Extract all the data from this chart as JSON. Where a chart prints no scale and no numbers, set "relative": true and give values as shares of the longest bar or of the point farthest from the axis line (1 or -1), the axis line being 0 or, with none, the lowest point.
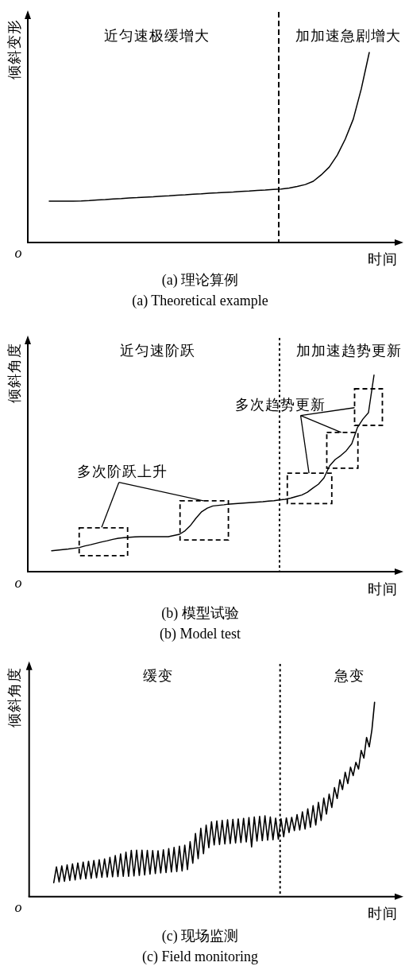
{
  "chart_data": [
    {
      "type": "line",
      "title": "(a) 理论算例",
      "subtitle": "(a) Theoretical example",
      "xlabel": "时间",
      "ylabel": "倾斜变形",
      "annotations": [
        "近匀速极缓增大",
        "加加速急剧增大",
        "o"
      ],
      "relative": true,
      "color": "#000000",
      "categories": [
        null,
        null,
        null,
        null,
        null,
        null,
        null,
        null,
        null,
        null,
        null,
        null,
        null,
        null,
        null,
        null,
        null,
        null,
        null,
        null,
        null,
        null,
        null,
        null,
        null,
        null,
        null,
        null,
        null,
        null,
        null,
        null,
        null,
        null,
        null,
        null,
        null,
        null,
        null,
        null,
        null
      ],
      "values": [
        0.218,
        0.218,
        0.218,
        0.218,
        0.219,
        0.221,
        0.224,
        0.226,
        0.229,
        0.231,
        0.234,
        0.236,
        0.239,
        0.241,
        0.244,
        0.246,
        0.249,
        0.251,
        0.254,
        0.256,
        0.259,
        0.261,
        0.264,
        0.266,
        0.269,
        0.271,
        0.274,
        0.276,
        0.279,
        0.281,
        0.287,
        0.295,
        0.305,
        0.322,
        0.356,
        0.397,
        0.46,
        0.544,
        0.649,
        0.808,
        1.0
      ]
    },
    {
      "type": "line",
      "title": "(b) 模型试验",
      "subtitle": "(b) Model test",
      "xlabel": "时间",
      "ylabel": "倾斜角度",
      "annotations": [
        "近匀速阶跃",
        "加加速趋势更新",
        "o",
        "多次阶跃上升",
        "多次趋势更新"
      ],
      "relative": true,
      "color": "#000000",
      "categories": [
        null,
        null,
        null,
        null,
        null,
        null,
        null,
        null,
        null,
        null,
        null,
        null,
        null,
        null,
        null,
        null,
        null,
        null,
        null,
        null,
        null,
        null,
        null,
        null,
        null,
        null,
        null,
        null,
        null,
        null,
        null,
        null,
        null,
        null,
        null,
        null,
        null,
        null,
        null,
        null,
        null,
        null,
        null,
        null,
        null,
        null,
        null,
        null,
        null,
        null,
        null,
        null,
        null,
        null,
        null,
        null,
        null,
        null,
        null
      ],
      "values": [
        0.106,
        0.109,
        0.112,
        0.115,
        0.119,
        0.123,
        0.131,
        0.137,
        0.144,
        0.151,
        0.157,
        0.164,
        0.17,
        0.173,
        0.175,
        0.177,
        0.178,
        0.178,
        0.178,
        0.178,
        0.178,
        0.178,
        0.184,
        0.19,
        0.208,
        0.236,
        0.273,
        0.305,
        0.323,
        0.334,
        0.337,
        0.34,
        0.344,
        0.346,
        0.348,
        0.35,
        0.352,
        0.354,
        0.356,
        0.359,
        0.361,
        0.365,
        0.368,
        0.374,
        0.382,
        0.39,
        0.404,
        0.425,
        0.445,
        0.477,
        0.538,
        0.57,
        0.59,
        0.615,
        0.651,
        0.732,
        0.776,
        0.809,
        1.0
      ]
    },
    {
      "type": "line",
      "title": "(c) 现场监测",
      "subtitle": "(c) Field monitoring",
      "xlabel": "时间",
      "ylabel": "倾斜角度",
      "annotations": [
        "缓变",
        "急变",
        "o"
      ],
      "relative": true,
      "color": "#000000",
      "categories": [
        null,
        null,
        null,
        null,
        null,
        null,
        null,
        null,
        null,
        null,
        null,
        null,
        null,
        null,
        null,
        null,
        null,
        null,
        null,
        null,
        null,
        null,
        null,
        null,
        null,
        null,
        null,
        null,
        null,
        null,
        null,
        null,
        null,
        null,
        null,
        null,
        null,
        null,
        null,
        null,
        null,
        null,
        null,
        null,
        null,
        null,
        null,
        null,
        null,
        null,
        null,
        null,
        null,
        null,
        null,
        null,
        null,
        null,
        null,
        null,
        null,
        null,
        null,
        null,
        null,
        null,
        null,
        null,
        null,
        null,
        null,
        null,
        null,
        null,
        null,
        null,
        null,
        null,
        null,
        null,
        null,
        null,
        null,
        null,
        null,
        null,
        null,
        null,
        null,
        null,
        null,
        null,
        null,
        null,
        null,
        null,
        null,
        null,
        null,
        null,
        null,
        null,
        null,
        null,
        null,
        null,
        null,
        null,
        null,
        null,
        null,
        null,
        null,
        null,
        null,
        null,
        null,
        null,
        null,
        null,
        null
      ],
      "values": [
        0.072,
        0.153,
        0.076,
        0.158,
        0.079,
        0.163,
        0.083,
        0.168,
        0.086,
        0.173,
        0.09,
        0.178,
        0.092,
        0.182,
        0.094,
        0.186,
        0.097,
        0.19,
        0.099,
        0.194,
        0.101,
        0.202,
        0.102,
        0.211,
        0.103,
        0.22,
        0.104,
        0.229,
        0.104,
        0.238,
        0.106,
        0.239,
        0.109,
        0.239,
        0.112,
        0.238,
        0.116,
        0.237,
        0.119,
        0.236,
        0.122,
        0.241,
        0.124,
        0.247,
        0.127,
        0.253,
        0.129,
        0.259,
        0.132,
        0.265,
        0.139,
        0.283,
        0.172,
        0.325,
        0.195,
        0.351,
        0.221,
        0.368,
        0.252,
        0.385,
        0.266,
        0.389,
        0.268,
        0.392,
        0.271,
        0.395,
        0.273,
        0.397,
        0.276,
        0.4,
        0.278,
        0.403,
        0.281,
        0.407,
        0.256,
        0.41,
        0.286,
        0.413,
        0.288,
        0.416,
        0.291,
        0.41,
        0.293,
        0.404,
        0.296,
        0.401,
        0.308,
        0.405,
        0.33,
        0.408,
        0.34,
        0.422,
        0.343,
        0.436,
        0.348,
        0.452,
        0.357,
        0.468,
        0.368,
        0.485,
        0.392,
        0.507,
        0.425,
        0.527,
        0.459,
        0.561,
        0.505,
        0.601,
        0.551,
        0.64,
        0.582,
        0.666,
        0.623,
        0.691,
        0.657,
        0.752,
        0.713,
        0.819,
        0.771,
        0.858,
        1.0
      ]
    }
  ]
}
